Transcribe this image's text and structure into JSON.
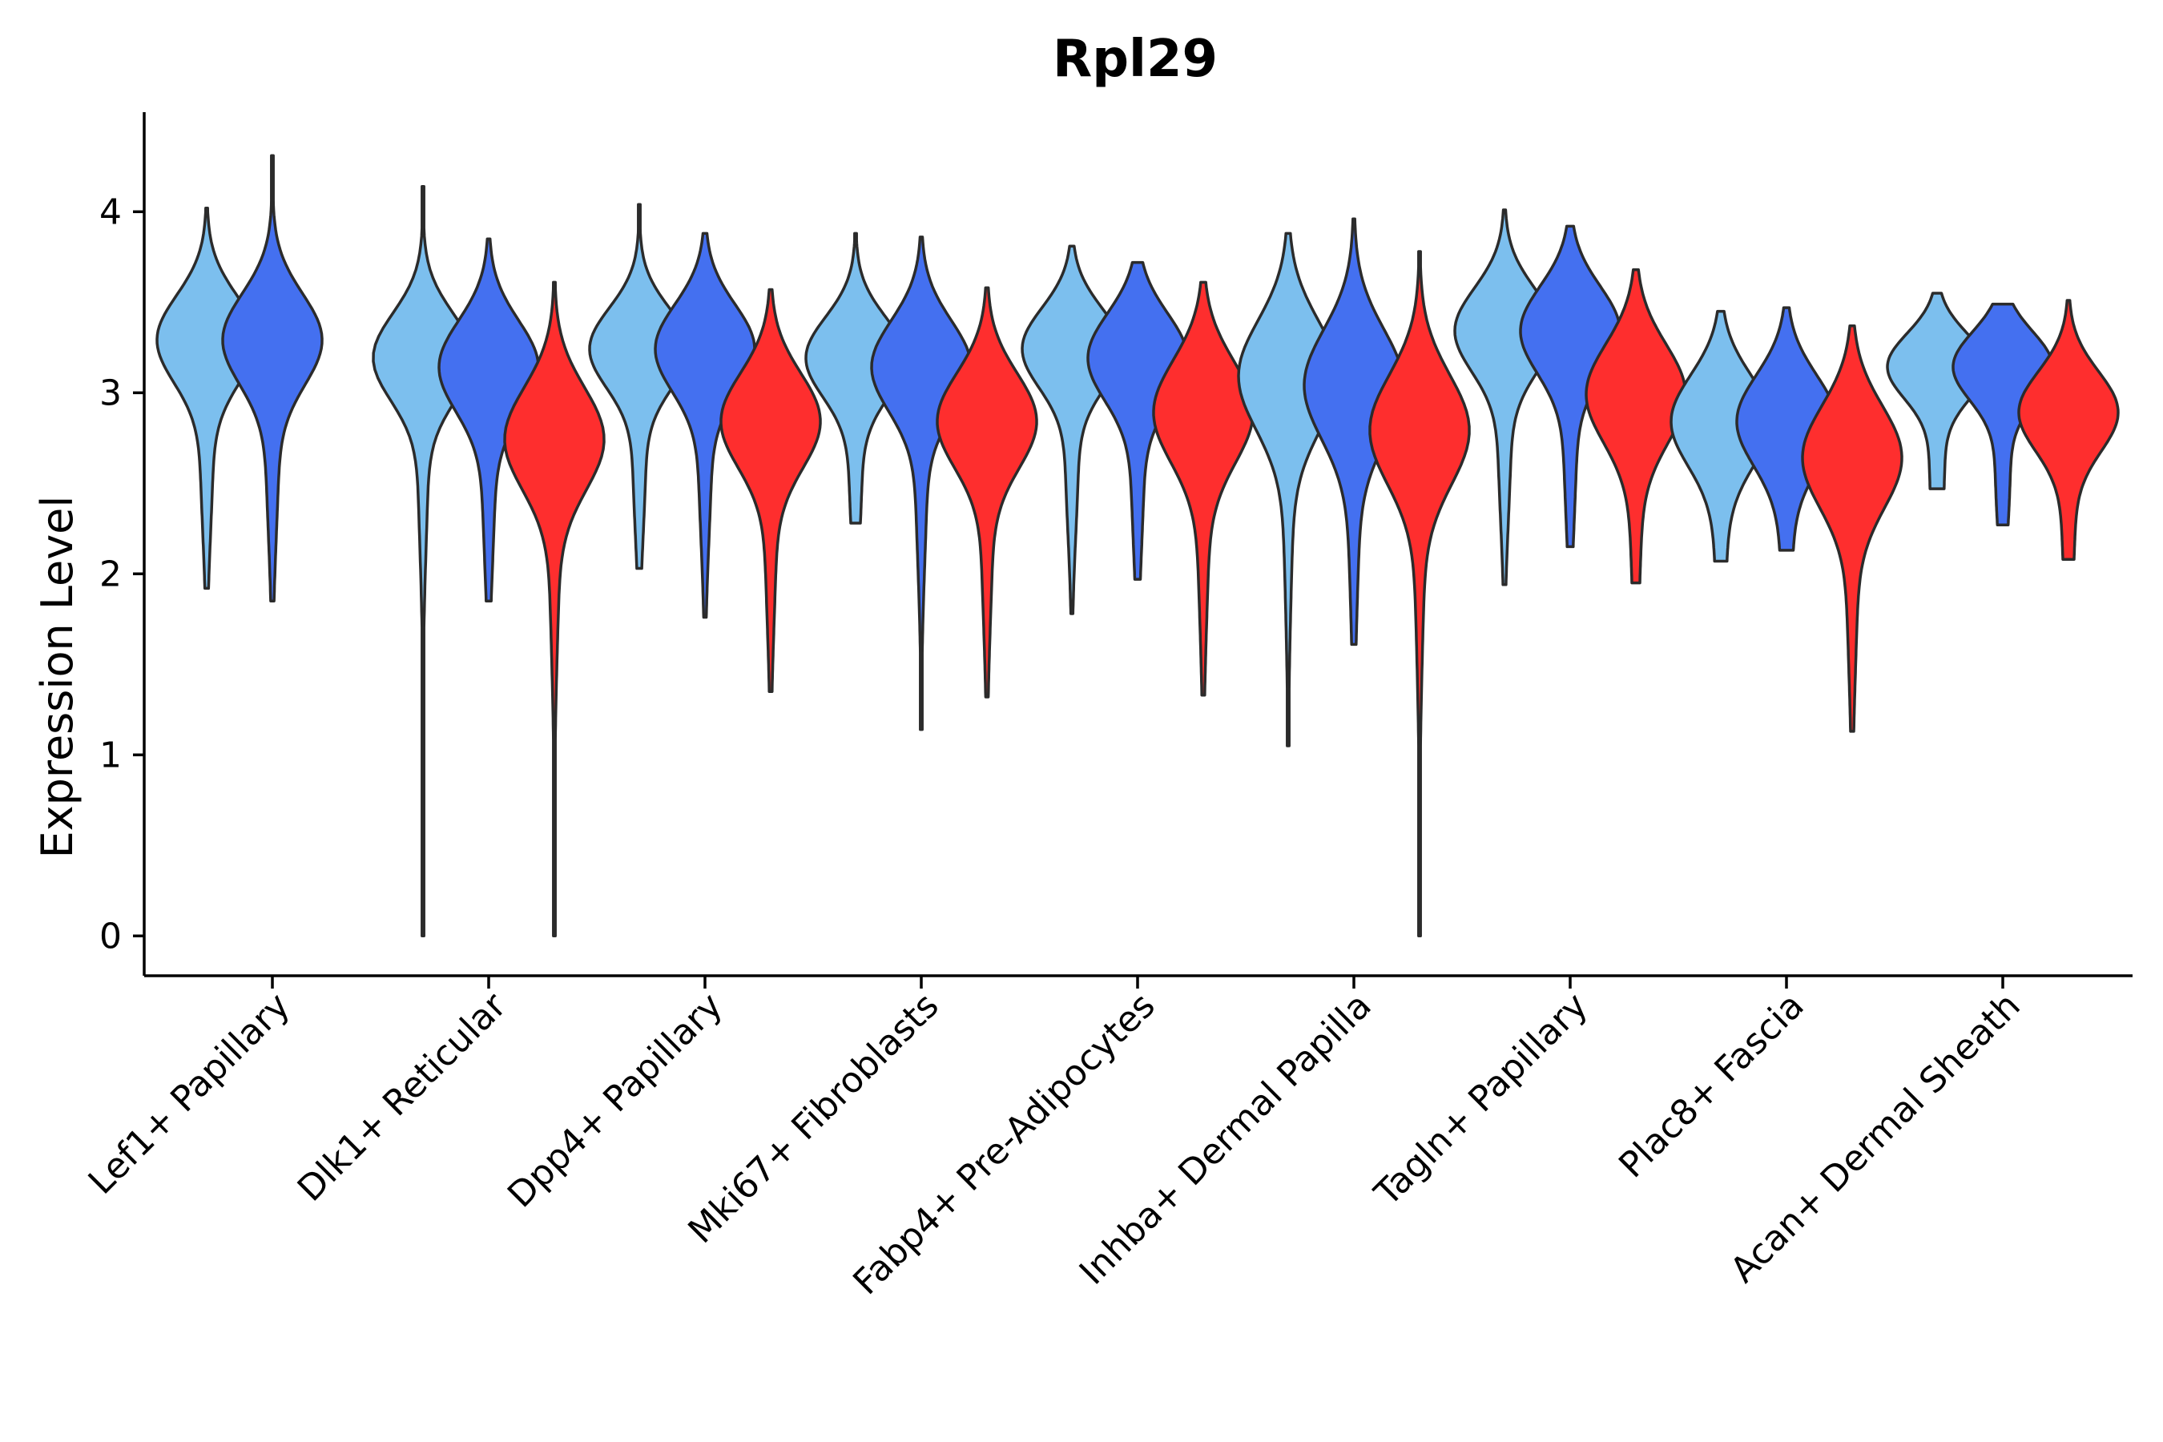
{
  "chart_data": {
    "type": "violin",
    "title": "Rpl29",
    "xlabel": "",
    "ylabel": "Expression Level",
    "ylim": [
      -0.22,
      4.55
    ],
    "yticks": [
      0,
      1,
      2,
      3,
      4
    ],
    "grid": false,
    "legend": "none",
    "colors": {
      "light_blue": "#7cbfee",
      "blue": "#4470f0",
      "red": "#fe2e2e"
    },
    "categories": [
      {
        "label": "Lef1+ Papillary",
        "violins": [
          {
            "color": "light_blue",
            "min": 1.92,
            "max": 4.02,
            "mode": 3.3,
            "spread": 0.24,
            "tail": 0.4
          },
          {
            "color": "blue",
            "min": 1.85,
            "max": 4.31,
            "mode": 3.3,
            "spread": 0.25,
            "tail": 0.4
          }
        ]
      },
      {
        "label": "Dlk1+ Reticular",
        "violins": [
          {
            "color": "light_blue",
            "min": 0.0,
            "max": 4.14,
            "mode": 3.2,
            "spread": 0.24,
            "tail": 0.3
          },
          {
            "color": "blue",
            "min": 1.85,
            "max": 3.85,
            "mode": 3.15,
            "spread": 0.25,
            "tail": 0.4
          },
          {
            "color": "red",
            "min": 0.0,
            "max": 3.61,
            "mode": 2.75,
            "spread": 0.28,
            "tail": 0.3
          }
        ]
      },
      {
        "label": "Dpp4+ Papillary",
        "violins": [
          {
            "color": "light_blue",
            "min": 2.03,
            "max": 4.04,
            "mode": 3.25,
            "spread": 0.22,
            "tail": 0.4
          },
          {
            "color": "blue",
            "min": 1.76,
            "max": 3.88,
            "mode": 3.25,
            "spread": 0.24,
            "tail": 0.4
          },
          {
            "color": "red",
            "min": 1.35,
            "max": 3.57,
            "mode": 2.85,
            "spread": 0.26,
            "tail": 0.35
          }
        ]
      },
      {
        "label": "Mki67+ Fibroblasts",
        "violins": [
          {
            "color": "light_blue",
            "min": 2.28,
            "max": 3.88,
            "mode": 3.2,
            "spread": 0.22,
            "tail": 0.4
          },
          {
            "color": "blue",
            "min": 1.14,
            "max": 3.86,
            "mode": 3.15,
            "spread": 0.25,
            "tail": 0.35
          },
          {
            "color": "red",
            "min": 1.32,
            "max": 3.58,
            "mode": 2.85,
            "spread": 0.26,
            "tail": 0.35
          }
        ]
      },
      {
        "label": "Fabp4+ Pre-Adipocytes",
        "violins": [
          {
            "color": "light_blue",
            "min": 1.78,
            "max": 3.81,
            "mode": 3.25,
            "spread": 0.22,
            "tail": 0.4
          },
          {
            "color": "blue",
            "min": 1.97,
            "max": 3.72,
            "mode": 3.2,
            "spread": 0.24,
            "tail": 0.4
          },
          {
            "color": "red",
            "min": 1.33,
            "max": 3.61,
            "mode": 2.9,
            "spread": 0.28,
            "tail": 0.35
          }
        ]
      },
      {
        "label": "Inhba+ Dermal Papilla",
        "violins": [
          {
            "color": "light_blue",
            "min": 1.05,
            "max": 3.88,
            "mode": 3.1,
            "spread": 0.3,
            "tail": 0.3
          },
          {
            "color": "blue",
            "min": 1.61,
            "max": 3.96,
            "mode": 3.05,
            "spread": 0.3,
            "tail": 0.35
          },
          {
            "color": "red",
            "min": 0.0,
            "max": 3.78,
            "mode": 2.8,
            "spread": 0.3,
            "tail": 0.3
          }
        ]
      },
      {
        "label": "Tagln+ Papillary",
        "violins": [
          {
            "color": "light_blue",
            "min": 1.94,
            "max": 4.01,
            "mode": 3.35,
            "spread": 0.23,
            "tail": 0.4
          },
          {
            "color": "blue",
            "min": 2.15,
            "max": 3.92,
            "mode": 3.35,
            "spread": 0.24,
            "tail": 0.4
          },
          {
            "color": "red",
            "min": 1.95,
            "max": 3.68,
            "mode": 3.0,
            "spread": 0.27,
            "tail": 0.35
          }
        ]
      },
      {
        "label": "Plac8+ Fascia",
        "violins": [
          {
            "color": "light_blue",
            "min": 2.07,
            "max": 3.45,
            "mode": 2.85,
            "spread": 0.25,
            "tail": 0.4
          },
          {
            "color": "blue",
            "min": 2.13,
            "max": 3.47,
            "mode": 2.85,
            "spread": 0.25,
            "tail": 0.4
          },
          {
            "color": "red",
            "min": 1.13,
            "max": 3.37,
            "mode": 2.65,
            "spread": 0.28,
            "tail": 0.35
          }
        ]
      },
      {
        "label": "Acan+ Dermal Sheath",
        "violins": [
          {
            "color": "light_blue",
            "min": 2.47,
            "max": 3.55,
            "mode": 3.15,
            "spread": 0.18,
            "tail": 0.45
          },
          {
            "color": "blue",
            "min": 2.27,
            "max": 3.49,
            "mode": 3.15,
            "spread": 0.19,
            "tail": 0.45
          },
          {
            "color": "red",
            "min": 2.08,
            "max": 3.51,
            "mode": 2.9,
            "spread": 0.22,
            "tail": 0.4
          }
        ]
      }
    ]
  }
}
